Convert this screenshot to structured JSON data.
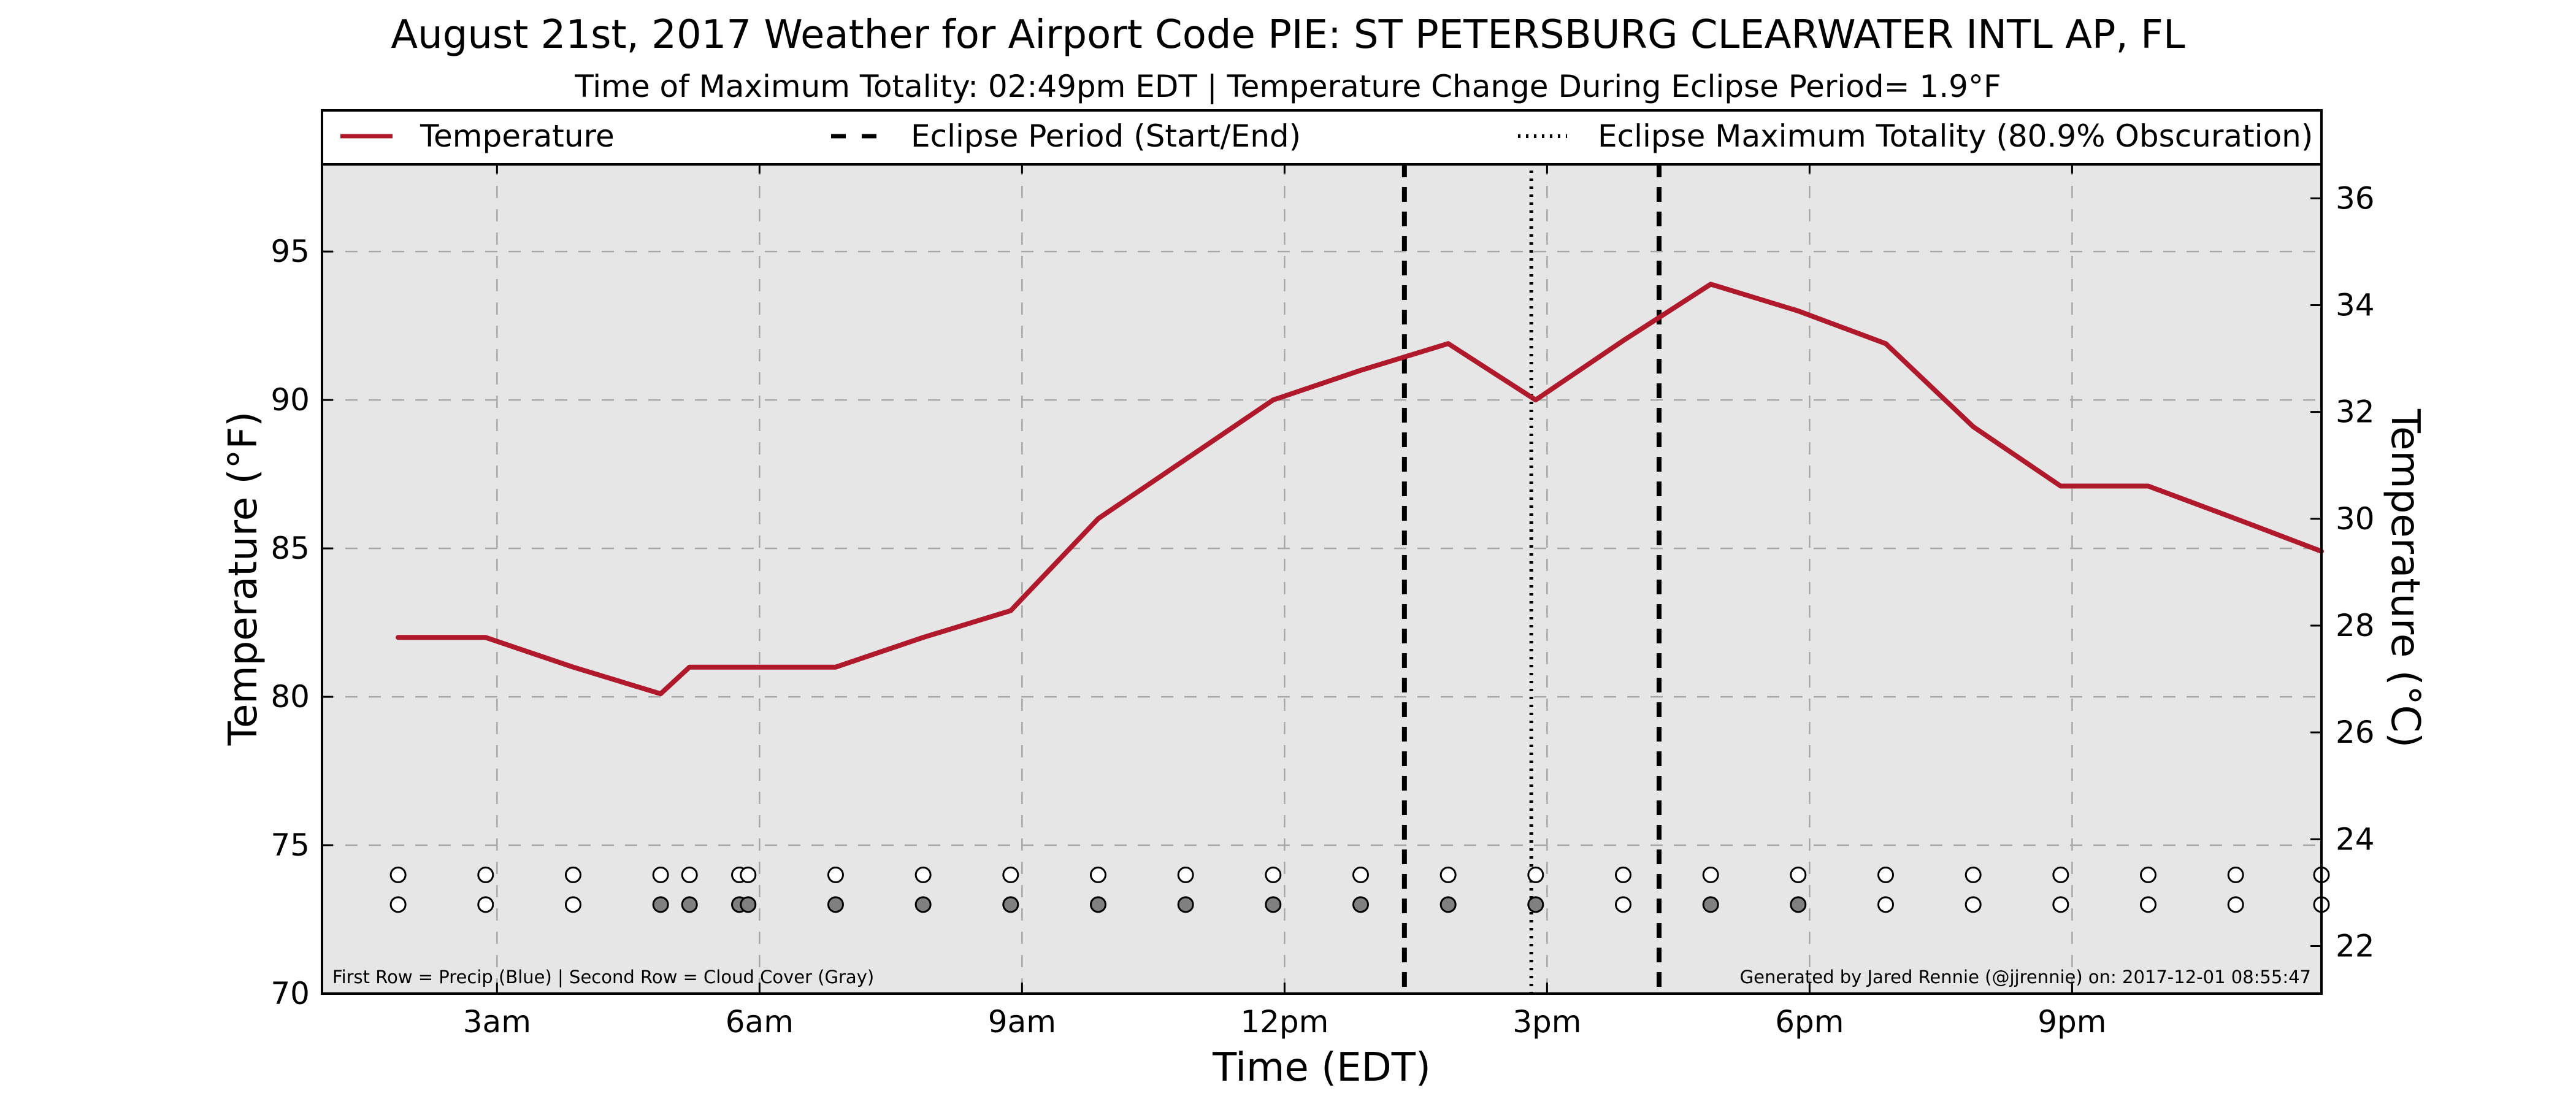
{
  "chart_data": {
    "type": "line",
    "title": "August 21st, 2017 Weather for Airport Code PIE: ST PETERSBURG CLEARWATER INTL AP, FL",
    "subtitle": "Time of Maximum Totality: 02:49pm EDT | Temperature Change During Eclipse Period= 1.9°F",
    "xlabel": "Time (EDT)",
    "ylabel": "Temperature (°F)",
    "y2label": "Temperature (°C)",
    "xlim": [
      1.0,
      23.85
    ],
    "ylim": [
      70,
      98
    ],
    "y2lim": [
      21.11,
      36.67
    ],
    "x_ticks": [
      {
        "value": 3,
        "label": "3am"
      },
      {
        "value": 6,
        "label": "6am"
      },
      {
        "value": 9,
        "label": "9am"
      },
      {
        "value": 12,
        "label": "12pm"
      },
      {
        "value": 15,
        "label": "3pm"
      },
      {
        "value": 18,
        "label": "6pm"
      },
      {
        "value": 21,
        "label": "9pm"
      }
    ],
    "y_ticks": [
      70,
      75,
      80,
      85,
      90,
      95
    ],
    "y2_ticks": [
      22,
      24,
      26,
      28,
      30,
      32,
      34,
      36
    ],
    "grid": true,
    "legend_position": "top (above plot, full width)",
    "legend": [
      {
        "label": "Temperature",
        "style": "solid-red"
      },
      {
        "label": "Eclipse Period (Start/End)",
        "style": "dashed-black"
      },
      {
        "label": "Eclipse Maximum Totality (80.9% Obscuration)",
        "style": "dotted-black"
      }
    ],
    "series": [
      {
        "name": "Temperature",
        "color": "#b0192b",
        "x": [
          1.87,
          2.87,
          3.87,
          4.87,
          5.2,
          5.87,
          6.87,
          7.87,
          8.87,
          9.87,
          10.87,
          11.87,
          12.87,
          13.87,
          14.87,
          15.87,
          16.87,
          17.87,
          18.87,
          19.87,
          20.87,
          21.87,
          22.87,
          23.85
        ],
        "y": [
          82,
          82,
          81,
          80.1,
          81,
          81,
          81,
          82,
          82.9,
          86,
          88,
          90,
          91,
          91.9,
          90,
          92,
          93.9,
          93,
          91.9,
          89.1,
          87.1,
          87.1,
          86,
          84.9
        ]
      }
    ],
    "eclipse_lines": [
      {
        "label": "Eclipse start",
        "x": 13.37,
        "style": "dashed"
      },
      {
        "label": "Maximum totality",
        "x": 14.82,
        "style": "dotted"
      },
      {
        "label": "Eclipse end",
        "x": 16.28,
        "style": "dashed"
      }
    ],
    "indicator_rows": {
      "precip_y": 74,
      "cloud_y": 73,
      "precip_x": [
        1.87,
        2.87,
        3.87,
        4.87,
        5.2,
        5.77,
        5.87,
        6.87,
        7.87,
        8.87,
        9.87,
        10.87,
        11.87,
        12.87,
        13.87,
        14.87,
        15.87,
        16.87,
        17.87,
        18.87,
        19.87,
        20.87,
        21.87,
        22.87,
        23.85
      ],
      "precip_filled": [
        false,
        false,
        false,
        false,
        false,
        false,
        false,
        false,
        false,
        false,
        false,
        false,
        false,
        false,
        false,
        false,
        false,
        false,
        false,
        false,
        false,
        false,
        false,
        false,
        false
      ],
      "cloud_x": [
        1.87,
        2.87,
        3.87,
        4.87,
        5.2,
        5.77,
        5.87,
        6.87,
        7.87,
        8.87,
        9.87,
        10.87,
        11.87,
        12.87,
        13.87,
        14.87,
        15.87,
        16.87,
        17.87,
        18.87,
        19.87,
        20.87,
        21.87,
        22.87,
        23.85
      ],
      "cloud_filled": [
        false,
        false,
        false,
        true,
        true,
        true,
        true,
        true,
        true,
        true,
        true,
        true,
        true,
        true,
        true,
        true,
        false,
        true,
        true,
        false,
        false,
        false,
        false,
        false,
        false
      ]
    },
    "footnote_left": "First Row = Precip (Blue) | Second Row = Cloud Cover (Gray)",
    "footnote_right": "Generated by Jared Rennie (@jjrennie) on: 2017-12-01 08:55:47",
    "colors": {
      "line": "#b0192b",
      "plot_bg": "#e6e6e6",
      "grid": "#a8a8a8",
      "cloud_fill": "#808080",
      "open_marker": "#ffffff"
    }
  }
}
